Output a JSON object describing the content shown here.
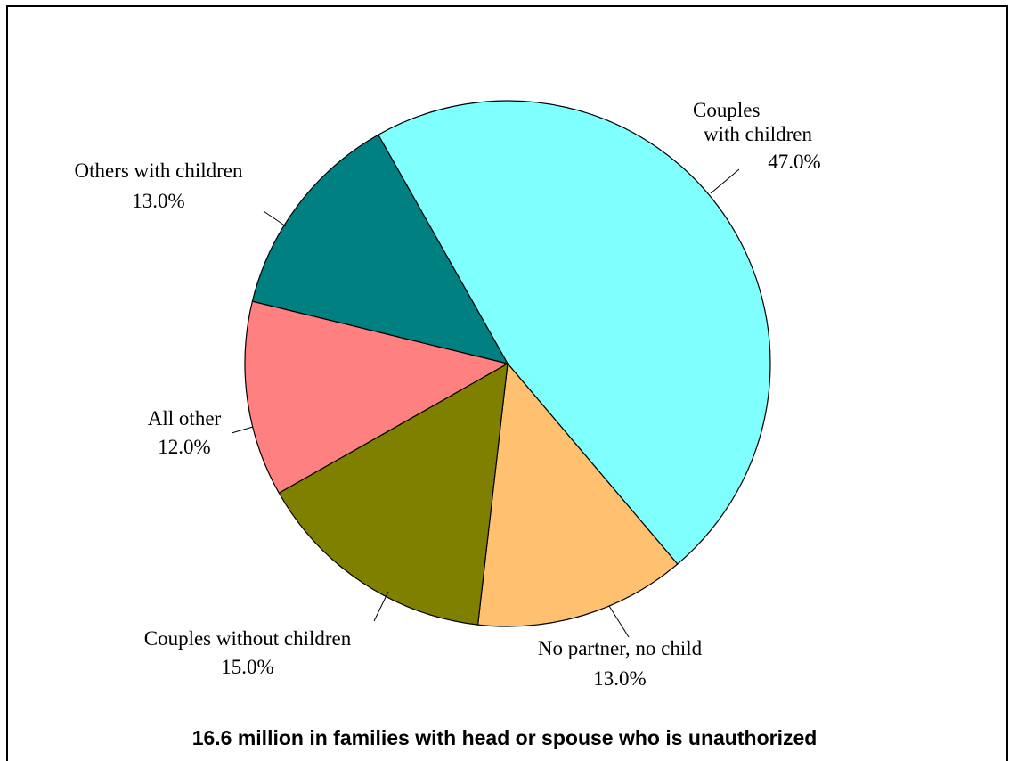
{
  "chart_data": {
    "type": "pie",
    "title": "16.6 million in families with head or spouse who is unauthorized",
    "slices": [
      {
        "label_lines": [
          "Couples",
          "with children"
        ],
        "value": 47.0,
        "value_text": "47.0%",
        "color": "#80FFFF"
      },
      {
        "label_lines": [
          "No partner, no child"
        ],
        "value": 13.0,
        "value_text": "13.0%",
        "color": "#FFC170"
      },
      {
        "label_lines": [
          "Couples without children"
        ],
        "value": 15.0,
        "value_text": "15.0%",
        "color": "#808000"
      },
      {
        "label_lines": [
          "All other"
        ],
        "value": 12.0,
        "value_text": "12.0%",
        "color": "#FF8080"
      },
      {
        "label_lines": [
          "Others with children"
        ],
        "value": 13.0,
        "value_text": "13.0%",
        "color": "#008080"
      }
    ],
    "start_angle_deg": -29.5,
    "direction": "clockwise"
  }
}
